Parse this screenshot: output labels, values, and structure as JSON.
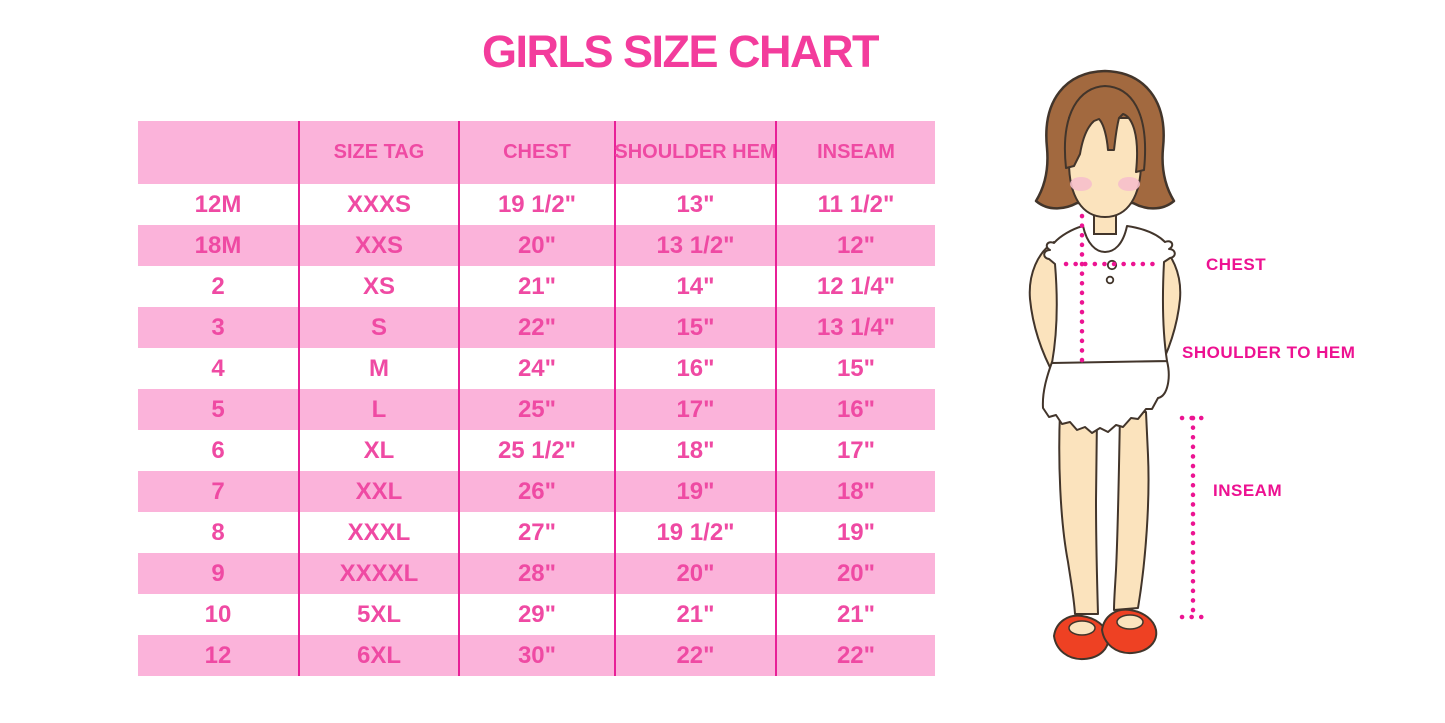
{
  "chart_data": {
    "type": "table",
    "title": "GIRLS SIZE CHART",
    "columns": [
      "",
      "SIZE TAG",
      "CHEST",
      "SHOULDER HEM",
      "INSEAM"
    ],
    "rows": [
      [
        "12M",
        "XXXS",
        "19 1/2\"",
        "13\"",
        "11 1/2\""
      ],
      [
        "18M",
        "XXS",
        "20\"",
        "13 1/2\"",
        "12\""
      ],
      [
        "2",
        "XS",
        "21\"",
        "14\"",
        "12 1/4\""
      ],
      [
        "3",
        "S",
        "22\"",
        "15\"",
        "13 1/4\""
      ],
      [
        "4",
        "M",
        "24\"",
        "16\"",
        "15\""
      ],
      [
        "5",
        "L",
        "25\"",
        "17\"",
        "16\""
      ],
      [
        "6",
        "XL",
        "25 1/2\"",
        "18\"",
        "17\""
      ],
      [
        "7",
        "XXL",
        "26\"",
        "19\"",
        "18\""
      ],
      [
        "8",
        "XXXL",
        "27\"",
        "19 1/2\"",
        "19\""
      ],
      [
        "9",
        "XXXXL",
        "28\"",
        "20\"",
        "20\""
      ],
      [
        "10",
        "5XL",
        "29\"",
        "21\"",
        "21\""
      ],
      [
        "12",
        "6XL",
        "30\"",
        "22\"",
        "22\""
      ]
    ],
    "layout": {
      "header_background": "pink",
      "row_striping": "white/pink alternating",
      "gridlines": "vertical only"
    }
  },
  "figure": {
    "description": "illustration of girl with bob haircut, white sleeveless ruffle top, red mary-jane shoes",
    "labels": {
      "chest": "CHEST",
      "shoulder_to_hem": "SHOULDER TO HEM",
      "inseam": "INSEAM"
    }
  },
  "colors": {
    "title_pink": "#f33c9c",
    "row_pink": "#fbb3da",
    "divider": "#e82097",
    "cell_text": "#ef4aa3",
    "label_magenta": "#ed1191",
    "dot_line": "#ec1492",
    "hair_brown": "#a2693f",
    "skin": "#fbe3bd",
    "blush": "#f6bfcb",
    "shoe_red": "#ee4123",
    "outline": "#42352b"
  }
}
